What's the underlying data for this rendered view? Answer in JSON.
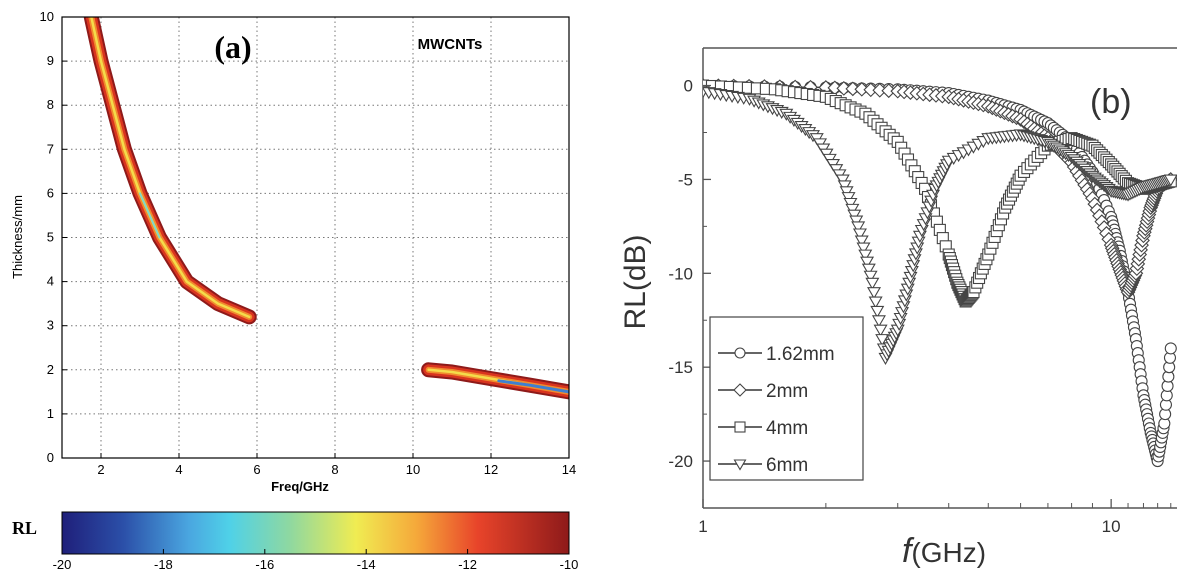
{
  "chart_data": [
    {
      "type": "heatmap",
      "panel_label": "(a)",
      "annotation": "MWCNTs",
      "xlabel": "Freq/GHz",
      "ylabel": "Thickness/mm",
      "xlim": [
        1,
        14
      ],
      "ylim": [
        0,
        10
      ],
      "xticks": [
        "2",
        "4",
        "6",
        "8",
        "10",
        "12",
        "14"
      ],
      "yticks": [
        "0",
        "1",
        "2",
        "3",
        "4",
        "5",
        "6",
        "7",
        "8",
        "9",
        "10"
      ],
      "grid": true,
      "colorbar": {
        "label": "RL",
        "range": [
          -20,
          -10
        ],
        "ticks": [
          "-20",
          "-18",
          "-16",
          "-14",
          "-12",
          "-10"
        ]
      },
      "bands": [
        {
          "name": "low-frequency band",
          "points": [
            [
              1.75,
              10
            ],
            [
              2.0,
              9.0
            ],
            [
              2.3,
              8.0
            ],
            [
              2.6,
              7.0
            ],
            [
              3.0,
              6.0
            ],
            [
              3.5,
              5.0
            ],
            [
              4.2,
              4.0
            ],
            [
              5.0,
              3.5
            ],
            [
              5.8,
              3.2
            ]
          ]
        },
        {
          "name": "high-frequency band",
          "points": [
            [
              10.4,
              2.0
            ],
            [
              11.0,
              1.95
            ],
            [
              12.0,
              1.8
            ],
            [
              13.0,
              1.65
            ],
            [
              14.0,
              1.5
            ]
          ]
        }
      ]
    },
    {
      "type": "line",
      "panel_label": "(b)",
      "xlabel_italic": "f",
      "xlabel_rest": "(GHz)",
      "ylabel": "RL(dB)",
      "x_scale": "log",
      "xlim": [
        1,
        14.5
      ],
      "ylim": [
        -22.5,
        2
      ],
      "xticks": [
        "1",
        "10"
      ],
      "yticks": [
        "0",
        "-5",
        "-10",
        "-15",
        "-20"
      ],
      "legend_position": "bottom-left",
      "series": [
        {
          "name": "1.62mm",
          "marker": "circle",
          "x": [
            1,
            2,
            3,
            4,
            5,
            6,
            7,
            8,
            9,
            10,
            10.5,
            11,
            11.5,
            12,
            12.5,
            13,
            13.5,
            14
          ],
          "y": [
            0,
            -0.1,
            -0.2,
            -0.4,
            -0.8,
            -1.3,
            -2.0,
            -3.0,
            -4.6,
            -7.0,
            -8.8,
            -11.0,
            -13.5,
            -16.5,
            -18.5,
            -20.0,
            -18.0,
            -14.0
          ]
        },
        {
          "name": "2mm",
          "marker": "diamond",
          "x": [
            1,
            2,
            3,
            4,
            5,
            6,
            7,
            8,
            9,
            10,
            10.5,
            11,
            11.5,
            12,
            12.5,
            13,
            14
          ],
          "y": [
            0,
            -0.1,
            -0.3,
            -0.6,
            -1.1,
            -1.8,
            -2.8,
            -4.1,
            -6.0,
            -8.5,
            -9.8,
            -11.0,
            -10.0,
            -8.0,
            -6.5,
            -5.5,
            -5.0
          ]
        },
        {
          "name": "4mm",
          "marker": "square",
          "x": [
            1,
            1.5,
            2,
            2.5,
            3,
            3.5,
            4,
            4.2,
            4.4,
            4.6,
            5,
            5.5,
            6,
            7,
            8,
            9,
            10,
            11,
            12,
            13,
            14
          ],
          "y": [
            0,
            -0.2,
            -0.6,
            -1.5,
            -3.0,
            -5.5,
            -9.0,
            -10.5,
            -11.5,
            -11.0,
            -9.0,
            -6.5,
            -4.8,
            -3.2,
            -2.8,
            -3.2,
            -4.2,
            -5.2,
            -5.5,
            -5.3,
            -5.1
          ]
        },
        {
          "name": "6mm",
          "marker": "triangle-down",
          "x": [
            1,
            1.3,
            1.6,
            1.9,
            2.2,
            2.4,
            2.6,
            2.8,
            3.0,
            3.2,
            3.4,
            3.7,
            4.0,
            5,
            6,
            7,
            8,
            9,
            10,
            11,
            12,
            13,
            14
          ],
          "y": [
            -0.3,
            -0.7,
            -1.5,
            -2.8,
            -5.0,
            -7.5,
            -10.5,
            -14.5,
            -13.0,
            -10.5,
            -8.0,
            -5.5,
            -4.0,
            -2.8,
            -2.6,
            -3.0,
            -3.8,
            -4.8,
            -5.6,
            -5.8,
            -5.4,
            -5.2,
            -5.0
          ]
        }
      ]
    }
  ]
}
